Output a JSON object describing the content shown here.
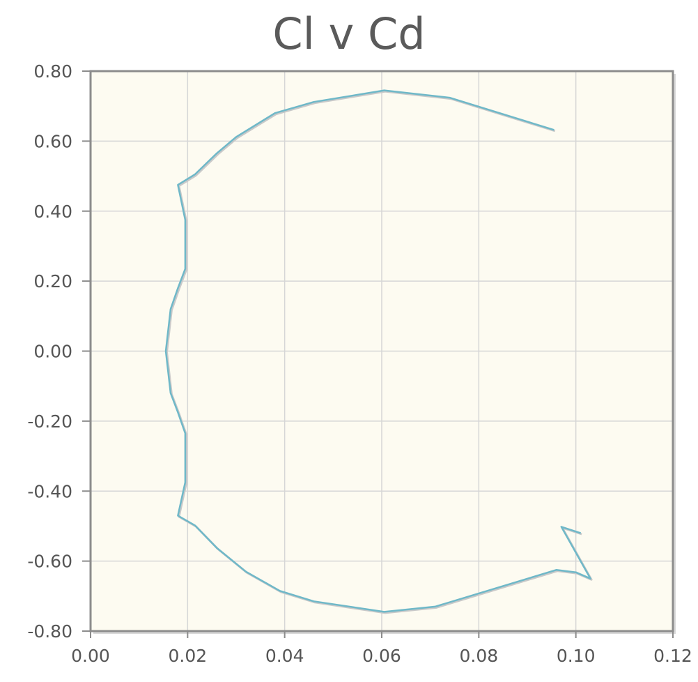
{
  "chart_data": {
    "type": "line",
    "title": "Cl v Cd",
    "xlabel": "",
    "ylabel": "",
    "xlim": [
      0.0,
      0.12
    ],
    "ylim": [
      -0.8,
      0.8
    ],
    "x_ticks": [
      "0.00",
      "0.02",
      "0.04",
      "0.06",
      "0.08",
      "0.10",
      "0.12"
    ],
    "y_ticks": [
      "0.80",
      "0.60",
      "0.40",
      "0.20",
      "0.00",
      "-0.20",
      "-0.40",
      "-0.60",
      "-0.80"
    ],
    "grid": true,
    "colors": {
      "plot_background": "#fdfbf1",
      "grid": "#d6d6d6",
      "axis": "#8c8c8c",
      "series": "#6fb8c8"
    },
    "series": [
      {
        "points": [
          [
            0.0955,
            0.632
          ],
          [
            0.074,
            0.724
          ],
          [
            0.0605,
            0.745
          ],
          [
            0.046,
            0.712
          ],
          [
            0.038,
            0.68
          ],
          [
            0.03,
            0.612
          ],
          [
            0.026,
            0.565
          ],
          [
            0.0215,
            0.505
          ],
          [
            0.018,
            0.475
          ],
          [
            0.0195,
            0.375
          ],
          [
            0.0195,
            0.235
          ],
          [
            0.018,
            0.18
          ],
          [
            0.0165,
            0.12
          ],
          [
            0.0155,
            0.0
          ],
          [
            0.0165,
            -0.12
          ],
          [
            0.018,
            -0.175
          ],
          [
            0.0195,
            -0.235
          ],
          [
            0.0195,
            -0.375
          ],
          [
            0.018,
            -0.47
          ],
          [
            0.0215,
            -0.498
          ],
          [
            0.026,
            -0.562
          ],
          [
            0.032,
            -0.63
          ],
          [
            0.039,
            -0.685
          ],
          [
            0.046,
            -0.715
          ],
          [
            0.0605,
            -0.745
          ],
          [
            0.071,
            -0.73
          ],
          [
            0.096,
            -0.625
          ],
          [
            0.1,
            -0.632
          ],
          [
            0.103,
            -0.65
          ],
          [
            0.097,
            -0.502
          ],
          [
            0.101,
            -0.52
          ]
        ]
      }
    ]
  }
}
